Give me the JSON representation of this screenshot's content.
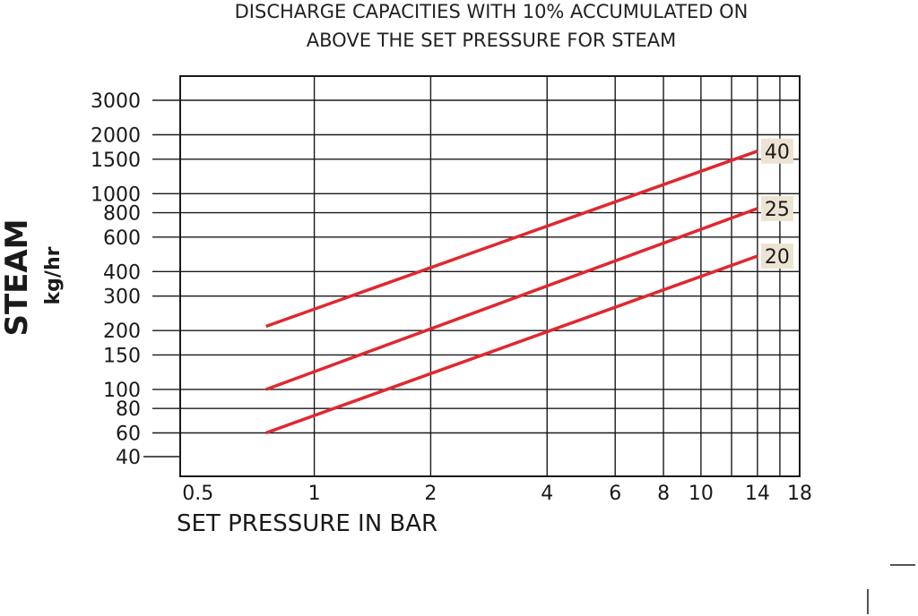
{
  "chart_data": {
    "type": "line",
    "title_lines": [
      "DISCHARGE CAPACITIES WITH 10% ACCUMULATED ON",
      "ABOVE THE SET PRESSURE FOR STEAM"
    ],
    "xlabel": "SET PRESSURE IN BAR",
    "ylabel": "STEAM",
    "ylabel_unit": "kg/hr",
    "x_scale": "log",
    "y_scale": "log",
    "xlim": [
      0.45,
      18
    ],
    "ylim": [
      40,
      3000
    ],
    "x_ticks": [
      0.5,
      1,
      2,
      4,
      6,
      8,
      10,
      14,
      18
    ],
    "x_tick_labels": [
      "0.5",
      "1",
      "2",
      "4",
      "6",
      "8",
      "10",
      "14",
      "18"
    ],
    "x_grid": [
      1,
      2,
      4,
      6,
      8,
      10,
      12,
      14,
      16
    ],
    "y_ticks": [
      40,
      60,
      80,
      100,
      150,
      200,
      300,
      400,
      600,
      800,
      1000,
      1500,
      2000,
      3000
    ],
    "y_tick_labels": [
      "40",
      "60",
      "80",
      "100",
      "150",
      "200",
      "300",
      "400",
      "600",
      "800",
      "1000",
      "1500",
      "2000",
      "3000"
    ],
    "grid": true,
    "line_color": "#e0282e",
    "label_bg_color": "#ede3d2",
    "series": [
      {
        "name": "40",
        "x": [
          0.75,
          14
        ],
        "y": [
          210,
          1650
        ]
      },
      {
        "name": "25",
        "x": [
          0.75,
          14
        ],
        "y": [
          100,
          840
        ]
      },
      {
        "name": "20",
        "x": [
          0.75,
          14
        ],
        "y": [
          60,
          480
        ]
      }
    ]
  }
}
